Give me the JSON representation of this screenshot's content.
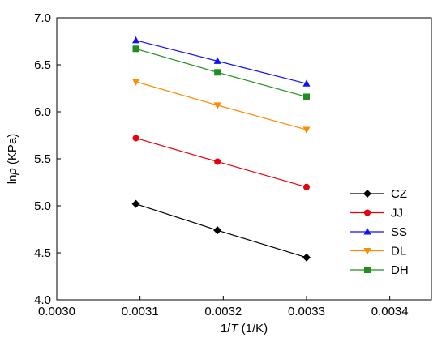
{
  "chart_data": {
    "type": "line",
    "xlabel": {
      "prefix": "1/",
      "italic": "T",
      "suffix": " (1/K)"
    },
    "ylabel": {
      "prefix": "ln",
      "italic": "p",
      "suffix": " (KPa)"
    },
    "xlim": [
      0.003,
      0.00345
    ],
    "ylim": [
      4.0,
      7.0
    ],
    "xticks": [
      "0.0030",
      "0.0031",
      "0.0032",
      "0.0033",
      "0.0034"
    ],
    "xtick_values": [
      0.003,
      0.0031,
      0.0032,
      0.0033,
      0.0034
    ],
    "yticks": [
      "4.0",
      "4.5",
      "5.0",
      "5.5",
      "6.0",
      "6.5",
      "7.0"
    ],
    "ytick_values": [
      4.0,
      4.5,
      5.0,
      5.5,
      6.0,
      6.5,
      7.0
    ],
    "grid": false,
    "legend_position": "lower-right",
    "x": [
      0.003095,
      0.003193,
      0.0033
    ],
    "series": [
      {
        "name": "CZ",
        "values": [
          5.02,
          4.74,
          4.45
        ],
        "color": "#000000",
        "marker": "diamond"
      },
      {
        "name": "JJ",
        "values": [
          5.72,
          5.47,
          5.2
        ],
        "color": "#e8000b",
        "marker": "circle"
      },
      {
        "name": "SS",
        "values": [
          6.76,
          6.54,
          6.3
        ],
        "color": "#1010ff",
        "marker": "triangle-up"
      },
      {
        "name": "DL",
        "values": [
          6.32,
          6.07,
          5.81
        ],
        "color": "#ff8c00",
        "marker": "triangle-down"
      },
      {
        "name": "DH",
        "values": [
          6.67,
          6.42,
          6.16
        ],
        "color": "#1f8f1f",
        "marker": "square"
      }
    ]
  }
}
